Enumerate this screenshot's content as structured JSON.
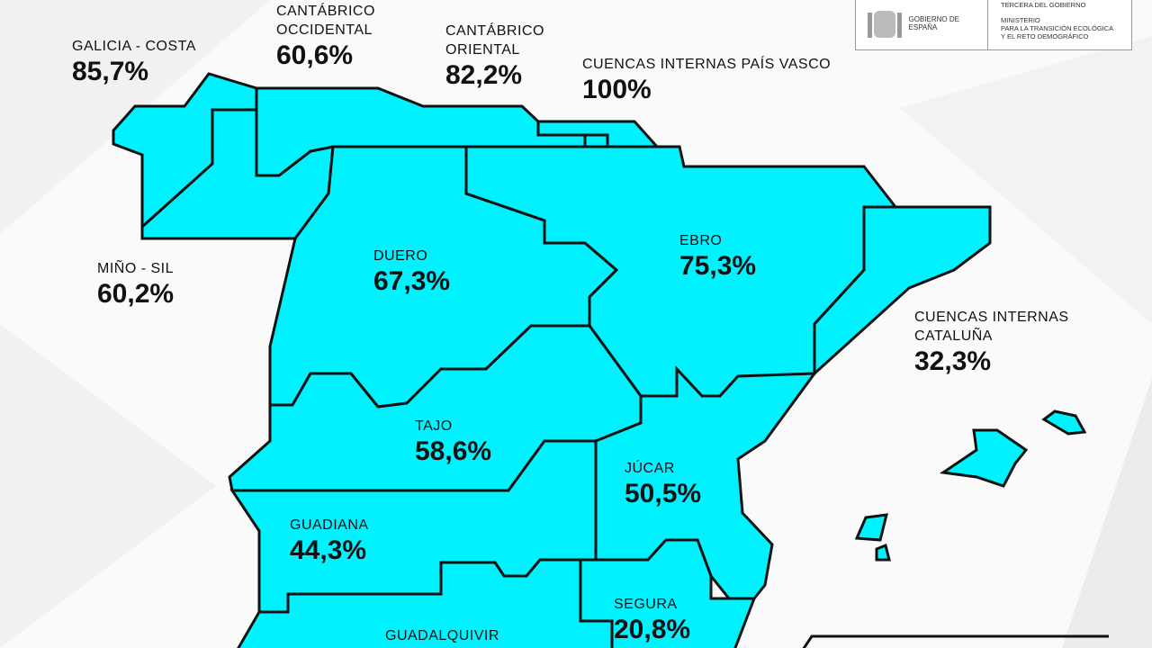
{
  "colors": {
    "region_fill": "#00F2FF",
    "border": "#111111"
  },
  "header": {
    "logo_government": "GOBIERNO DE ESPAÑA",
    "logo_vice": "TERCERA DEL GOBIERNO",
    "logo_ministry_1": "MINISTERIO",
    "logo_ministry_2": "PARA LA TRANSICIÓN ECOLÓGICA",
    "logo_ministry_3": "Y EL RETO DEMOGRÁFICO"
  },
  "basins": [
    {
      "name": "GALICIA - COSTA",
      "value": "85,7%"
    },
    {
      "name": "CANTÁBRICO\nOCCIDENTAL",
      "value": "60,6%"
    },
    {
      "name": "CANTÁBRICO\nORIENTAL",
      "value": "82,2%"
    },
    {
      "name": "CUENCAS INTERNAS PAÍS VASCO",
      "value": "100%"
    },
    {
      "name": "MIÑO - SIL",
      "value": "60,2%"
    },
    {
      "name": "DUERO",
      "value": "67,3%"
    },
    {
      "name": "EBRO",
      "value": "75,3%"
    },
    {
      "name": "CUENCAS INTERNAS\nCATALUÑA",
      "value": "32,3%"
    },
    {
      "name": "TAJO",
      "value": "58,6%"
    },
    {
      "name": "JÚCAR",
      "value": "50,5%"
    },
    {
      "name": "GUADIANA",
      "value": "44,3%"
    },
    {
      "name": "SEGURA",
      "value": "20,8%"
    },
    {
      "name": "GUADALQUIVIR",
      "value": ""
    }
  ]
}
